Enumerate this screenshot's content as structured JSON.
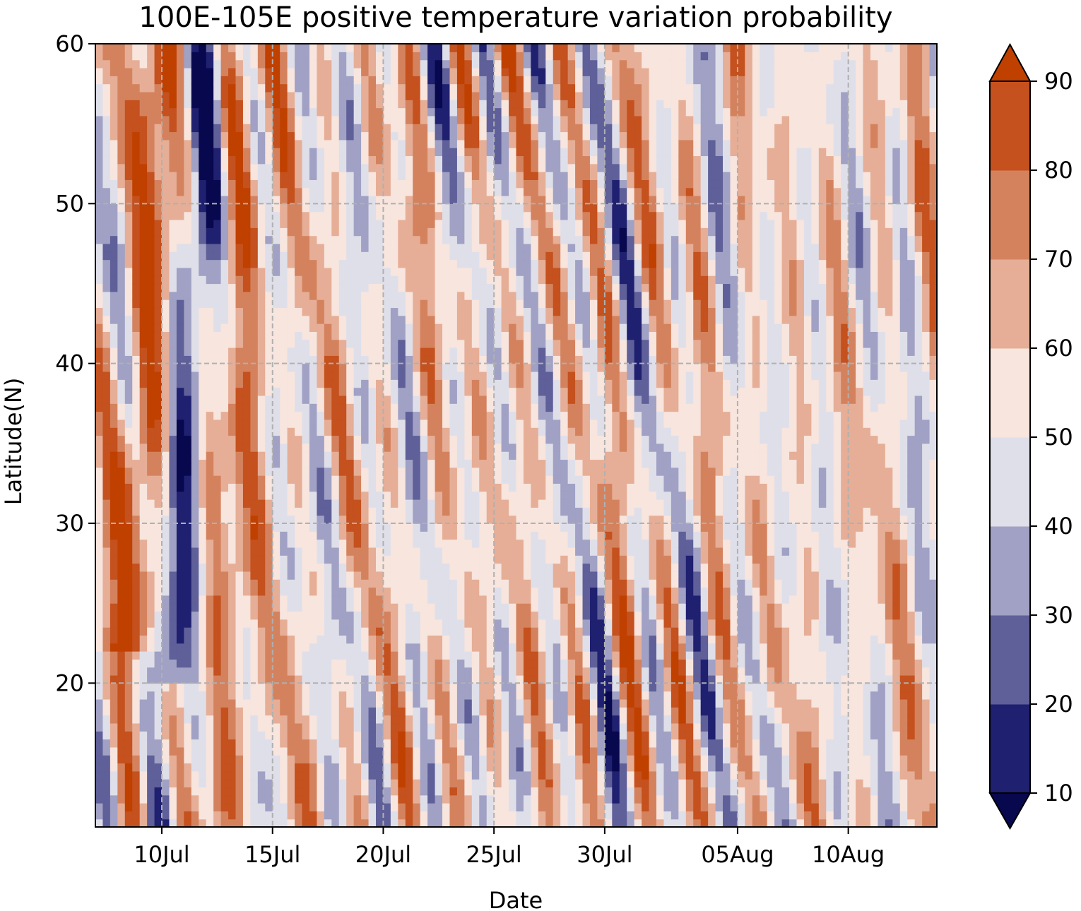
{
  "chart_data": {
    "type": "heatmap",
    "title": "100E-105E positive temperature variation probability",
    "xlabel": "Date",
    "ylabel": "Latitude(N)",
    "x_range": [
      "2023-07-07",
      "2023-08-14"
    ],
    "ylim": [
      11,
      60
    ],
    "x_ticks": [
      {
        "date": "2023-07-10",
        "label": "10Jul"
      },
      {
        "date": "2023-07-15",
        "label": "15Jul"
      },
      {
        "date": "2023-07-20",
        "label": "20Jul"
      },
      {
        "date": "2023-07-25",
        "label": "25Jul"
      },
      {
        "date": "2023-07-30",
        "label": "30Jul"
      },
      {
        "date": "2023-08-05",
        "label": "05Aug"
      },
      {
        "date": "2023-08-10",
        "label": "10Aug"
      }
    ],
    "y_ticks": [
      20,
      30,
      40,
      50,
      60
    ],
    "grid": true,
    "colorbar": {
      "levels": [
        10,
        20,
        30,
        40,
        50,
        60,
        70,
        80,
        90
      ],
      "tick_labels": [
        "10",
        "20",
        "30",
        "40",
        "50",
        "60",
        "70",
        "80",
        "90"
      ],
      "colors": [
        "#08084f",
        "#1f2070",
        "#5f5f99",
        "#a0a1c4",
        "#dfdfea",
        "#f7e5de",
        "#e6ae96",
        "#d4825e",
        "#c4511e",
        "#c04000"
      ],
      "extend": "both"
    }
  }
}
